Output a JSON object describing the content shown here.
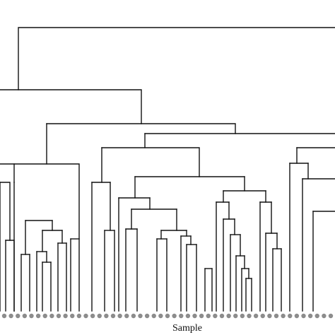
{
  "figure": {
    "type": "dendrogram",
    "xlabel": "Sample",
    "colors": {
      "branch": "#111111",
      "leaf_marker": "#8c8c8c",
      "background": "#ffffff"
    },
    "leaf_count": 49,
    "visible_cluster_heights_estimate": [
      1.0,
      0.82,
      0.69,
      0.62,
      0.57,
      0.45,
      0.36
    ]
  }
}
